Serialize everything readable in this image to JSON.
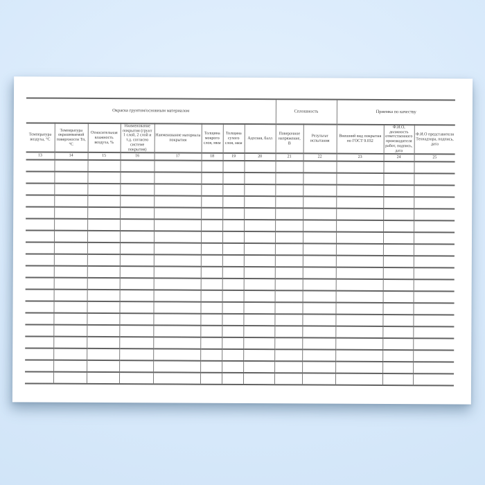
{
  "table": {
    "groups": [
      {
        "label": "Окраска грунтом/основным материалом"
      },
      {
        "label": "Сплошность"
      },
      {
        "label": "Приемка по качеству"
      }
    ],
    "columns": [
      {
        "number": "13",
        "header": "Температура воздуха, °С"
      },
      {
        "number": "14",
        "header": "Температура окрашиваемой поверхности Тп, °С"
      },
      {
        "number": "15",
        "header": "Относительная влажность воздуха, %"
      },
      {
        "number": "16",
        "header": "Наименование покрытия (грунт 1 слой, 2 слой и т.д. согласно системе покрытия)"
      },
      {
        "number": "17",
        "header": "Наименование материала покрытия"
      },
      {
        "number": "18",
        "header": "Толщина мокрого слоя, мкм"
      },
      {
        "number": "19",
        "header": "Толщина сухого слоя, мкм"
      },
      {
        "number": "20",
        "header": "Адгезия, балл"
      },
      {
        "number": "21",
        "header": "Поверочное напряжение, В"
      },
      {
        "number": "22",
        "header": "Результат испытания"
      },
      {
        "number": "23",
        "header": "Внешний вид покрытия по ГОСТ 9.032"
      },
      {
        "number": "24",
        "header": "Ф.И.О, должность ответственного производителя работ, подпись, дата"
      },
      {
        "number": "25",
        "header": "Ф.И.О представителя Технадзора, подпись, дата"
      }
    ],
    "body_row_count": 19,
    "body_cell_value": ""
  },
  "colors": {
    "horizontal_rule": "#616161",
    "vertical_rule": "#7a7a7a",
    "text": "#3b3b3b",
    "sheet": "#ffffff",
    "background_center": "#e6f2fd",
    "background_edge": "#cde2f6"
  }
}
